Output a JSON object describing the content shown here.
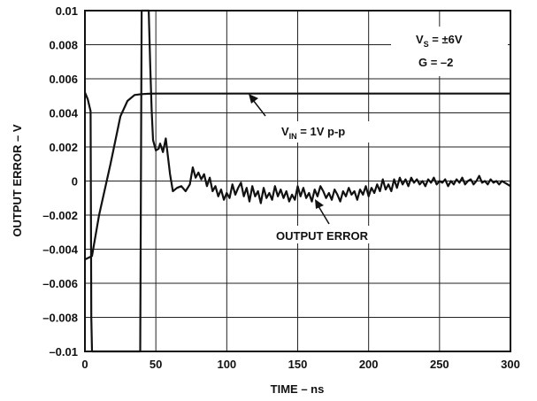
{
  "chart_data": {
    "type": "line",
    "xlabel": "TIME – ns",
    "ylabel": "OUTPUT ERROR – V",
    "xlim": [
      0,
      300
    ],
    "ylim": [
      -0.01,
      0.01
    ],
    "x_ticks": [
      "0",
      "50",
      "100",
      "150",
      "200",
      "250",
      "300"
    ],
    "x_tick_values": [
      0,
      50,
      100,
      150,
      200,
      250,
      300
    ],
    "y_ticks": [
      "0.01",
      "0.008",
      "0.006",
      "0.004",
      "0.002",
      "0",
      "–0.002",
      "–0.004",
      "–0.006",
      "–0.008",
      "–0.01"
    ],
    "y_tick_values": [
      0.01,
      0.008,
      0.006,
      0.004,
      0.002,
      0,
      -0.002,
      -0.004,
      -0.006,
      -0.008,
      -0.01
    ],
    "grid": true,
    "conditions": {
      "vs": {
        "main": "V",
        "sub": "S",
        "rest": " = ±6V"
      },
      "gain": "G = –2"
    },
    "annotations": {
      "vin": {
        "main": "V",
        "sub": "IN",
        "rest": " = 1V p-p"
      },
      "error": "OUTPUT ERROR"
    },
    "series": [
      {
        "name": "V_IN = 1V p-p",
        "x": [
          0,
          5,
          10,
          18,
          25,
          30,
          35,
          40,
          45,
          50,
          60,
          100,
          150,
          200,
          250,
          300
        ],
        "y": [
          -0.0046,
          -0.0044,
          -0.002,
          0.001,
          0.0038,
          0.0047,
          0.00505,
          0.0051,
          0.00512,
          0.00513,
          0.00513,
          0.00513,
          0.00513,
          0.00513,
          0.00513,
          0.00513
        ]
      },
      {
        "name": "OUTPUT ERROR",
        "x": [
          0,
          2,
          4,
          4.5,
          5,
          39,
          40,
          41,
          42,
          43,
          44,
          45,
          46,
          47,
          48,
          50,
          52,
          53,
          55,
          57,
          58,
          60,
          62,
          65,
          68,
          71,
          74,
          76,
          78,
          80,
          82,
          84,
          86,
          88,
          90,
          92,
          94,
          96,
          98,
          100,
          102,
          104,
          106,
          108,
          110,
          112,
          114,
          116,
          118,
          120,
          122,
          124,
          126,
          128,
          130,
          132,
          134,
          136,
          138,
          140,
          142,
          144,
          146,
          148,
          150,
          152,
          154,
          156,
          158,
          160,
          162,
          164,
          166,
          168,
          170,
          172,
          174,
          176,
          178,
          180,
          182,
          184,
          186,
          188,
          190,
          192,
          194,
          196,
          198,
          200,
          202,
          204,
          206,
          208,
          210,
          212,
          214,
          216,
          218,
          220,
          222,
          224,
          226,
          228,
          230,
          232,
          234,
          236,
          238,
          240,
          242,
          244,
          246,
          248,
          250,
          252,
          254,
          256,
          258,
          260,
          262,
          264,
          266,
          268,
          270,
          272,
          274,
          276,
          278,
          280,
          282,
          284,
          286,
          288,
          290,
          292,
          294,
          296,
          298,
          300
        ],
        "y": [
          0.0052,
          0.0048,
          0.0041,
          -0.008,
          -0.01,
          -0.01,
          0.01,
          0.01,
          0.01,
          0.01,
          0.01,
          0.01,
          0.0068,
          0.0042,
          0.0024,
          0.0018,
          0.0019,
          0.0022,
          0.0017,
          0.0025,
          0.0018,
          0.0004,
          -0.0006,
          -0.0004,
          -0.0003,
          -0.0006,
          -0.0002,
          0.0008,
          0.0002,
          0.0005,
          0.0001,
          0.0004,
          -0.0003,
          0.0002,
          -0.0006,
          -0.0003,
          -0.0009,
          -0.0005,
          -0.0011,
          -0.0007,
          -0.001,
          -0.0002,
          -0.0008,
          -0.0004,
          -0.0001,
          -0.0009,
          -0.0004,
          -0.0012,
          -0.0003,
          -0.0009,
          -0.0006,
          -0.0013,
          -0.0004,
          -0.001,
          -0.0007,
          -0.0011,
          -0.0003,
          -0.0009,
          -0.0005,
          -0.001,
          -0.0006,
          -0.0012,
          -0.0008,
          -0.0011,
          -0.0003,
          -0.0009,
          -0.0004,
          -0.001,
          -0.0007,
          -0.0012,
          -0.0005,
          -0.0009,
          -0.0003,
          -0.0006,
          -0.001,
          -0.0007,
          -0.0011,
          -0.0005,
          -0.0008,
          -0.0012,
          -0.0006,
          -0.0009,
          -0.0004,
          -0.0008,
          -0.0006,
          -0.0011,
          -0.0005,
          -0.0008,
          -0.0003,
          -0.0009,
          -0.0004,
          -0.0007,
          -0.0002,
          -0.0006,
          0.0001,
          -0.0005,
          -0.0002,
          -0.0006,
          0.0001,
          -0.0004,
          0.0002,
          -0.0002,
          0.0001,
          -0.0003,
          0.0002,
          -0.0001,
          0.0001,
          -0.0002,
          0.0,
          -0.0003,
          0.0001,
          -0.0001,
          0.0002,
          -0.0002,
          0.0,
          -0.0001,
          0.0001,
          -0.0003,
          0.0,
          -0.0002,
          0.0001,
          -0.0001,
          0.0002,
          -0.0002,
          0.0,
          0.0001,
          -0.0002,
          0.0,
          0.0003,
          -0.0001,
          0.0,
          -0.0002,
          0.0001,
          -0.0001,
          0.0,
          -0.0002,
          0.0,
          -0.0001,
          -0.0002,
          -0.0003
        ]
      }
    ]
  }
}
